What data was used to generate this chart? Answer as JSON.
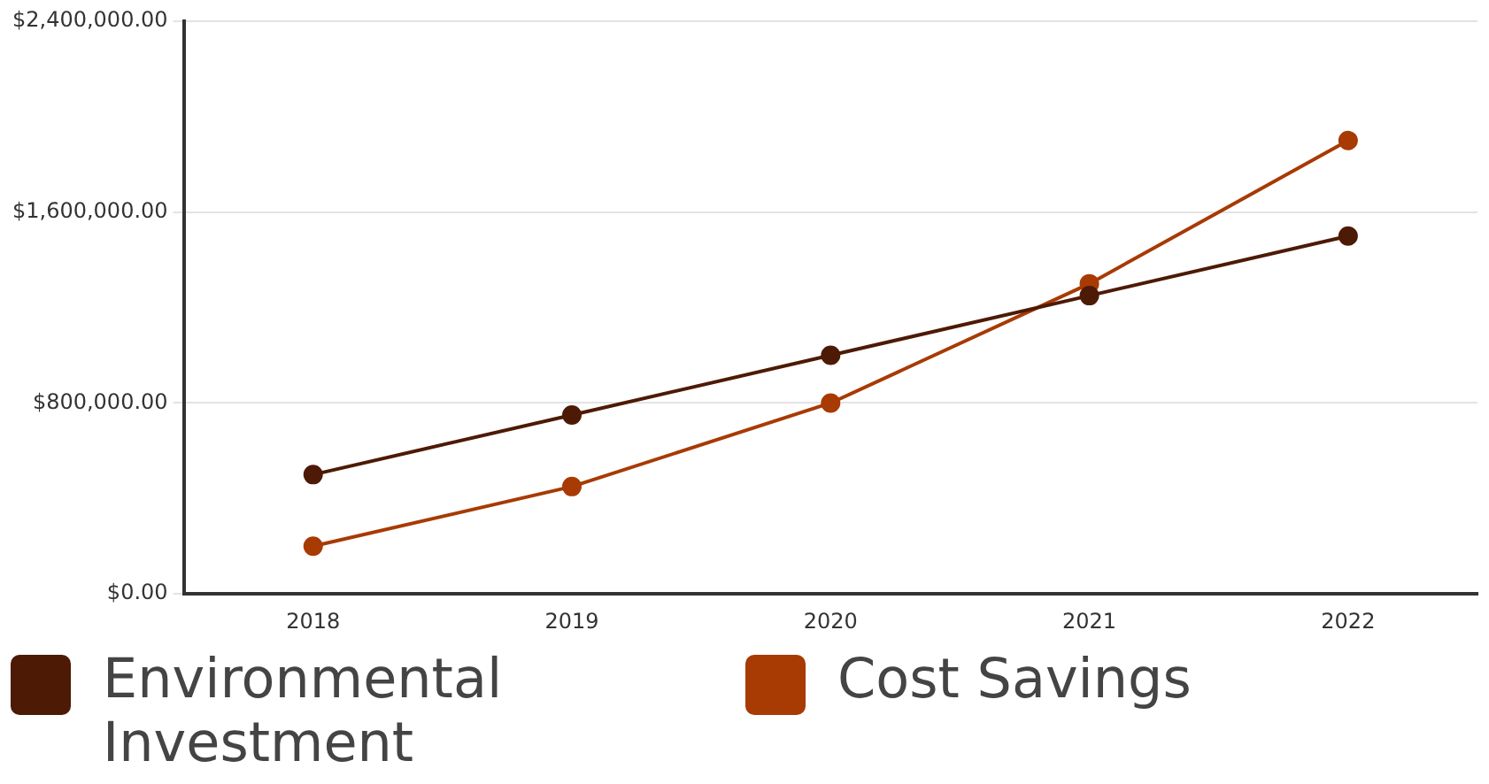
{
  "chart_data": {
    "type": "line",
    "categories": [
      "2018",
      "2019",
      "2020",
      "2021",
      "2022"
    ],
    "series": [
      {
        "name": "Environmental Investment",
        "color": "#4d1a05",
        "values": [
          500000,
          750000,
          1000000,
          1250000,
          1500000
        ]
      },
      {
        "name": "Cost Savings",
        "color": "#a83a04",
        "values": [
          200000,
          450000,
          800000,
          1300000,
          1900000
        ]
      }
    ],
    "ylim": [
      0,
      2400000
    ],
    "yticks": [
      {
        "value": 0,
        "label": "$0.00"
      },
      {
        "value": 800000,
        "label": "$800,000.00"
      },
      {
        "value": 1600000,
        "label": "$1,600,000.00"
      },
      {
        "value": 2400000,
        "label": "$2,400,000.00"
      }
    ],
    "grid": "y",
    "legend": "bottom",
    "marker": "circle",
    "line_style": "solid"
  }
}
